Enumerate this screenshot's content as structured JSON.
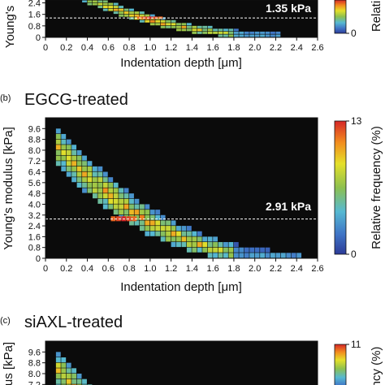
{
  "chart_data": [
    {
      "type": "heatmap",
      "panel_label": "",
      "title": "",
      "xlabel": "Indentation depth [μm]",
      "ylabel": "Young's",
      "x_ticks": [
        "0",
        "0.2",
        "0.4",
        "0.6",
        "0.8",
        "1.0",
        "1.2",
        "1.4",
        "1.6",
        "1.8",
        "2.0",
        "2.2",
        "2.4",
        "2.6"
      ],
      "y_ticks": [
        "0",
        "0.8",
        "1.6",
        "2.4"
      ],
      "xlim": [
        0,
        2.6
      ],
      "ylim": [
        0,
        2.6
      ],
      "annotation": "1.35 kPa",
      "median_line": 1.35,
      "colorbar": {
        "label": "Relati",
        "min_label": "0",
        "max_label": "",
        "min": 0,
        "max": 13
      },
      "ridge": {
        "x0": 0.25,
        "x1": 2.25,
        "y0": 3.6,
        "yEnd": 0.3,
        "width": 0.45,
        "peak": 13,
        "peak_x": 1.0
      }
    },
    {
      "type": "heatmap",
      "panel_label": "(b)",
      "title": "EGCG-treated",
      "xlabel": "Indentation depth [μm]",
      "ylabel": "Young's modulus [kPa]",
      "x_ticks": [
        "0",
        "0.2",
        "0.4",
        "0.6",
        "0.8",
        "1.0",
        "1.2",
        "1.4",
        "1.6",
        "1.8",
        "2.0",
        "2.2",
        "2.4",
        "2.6"
      ],
      "y_ticks": [
        "0",
        "0.8",
        "1.6",
        "2.4",
        "3.2",
        "4.0",
        "4.8",
        "5.6",
        "6.4",
        "7.2",
        "8.0",
        "8.8",
        "9.6"
      ],
      "xlim": [
        0,
        2.6
      ],
      "ylim": [
        0,
        10.4
      ],
      "annotation": "2.91 kPa",
      "median_line": 2.91,
      "colorbar": {
        "label": "Relative frequency (%)",
        "min_label": "0",
        "max_label": "13",
        "min": 0,
        "max": 13
      },
      "ridge": {
        "x0": 0.08,
        "x1": 2.45,
        "y0": 10.0,
        "yEnd": 0.3,
        "width": 2.6,
        "peak": 13,
        "peak_x": 0.75
      }
    },
    {
      "type": "heatmap",
      "panel_label": "(c)",
      "title": "siAXL-treated",
      "xlabel": "",
      "ylabel": "us [kPa]",
      "x_ticks": [],
      "y_ticks": [
        "7.2",
        "8.0",
        "8.8",
        "9.6"
      ],
      "xlim": [
        0,
        2.6
      ],
      "ylim": [
        6.8,
        10.4
      ],
      "annotation": "",
      "colorbar": {
        "label": "ncy (%)",
        "min_label": "",
        "max_label": "11",
        "min": 0,
        "max": 11
      },
      "ridge": {
        "x0": 0.08,
        "x1": 2.45,
        "y0": 10.0,
        "yEnd": 0.3,
        "width": 2.6,
        "peak": 11,
        "peak_x": 0.75
      }
    }
  ]
}
